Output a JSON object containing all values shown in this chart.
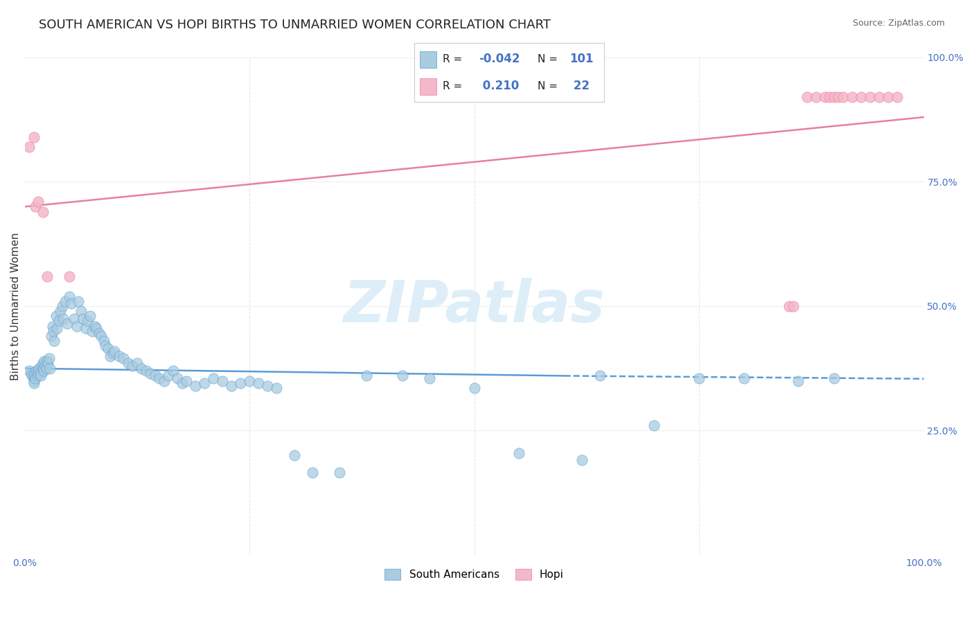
{
  "title": "SOUTH AMERICAN VS HOPI BIRTHS TO UNMARRIED WOMEN CORRELATION CHART",
  "source_text": "Source: ZipAtlas.com",
  "ylabel": "Births to Unmarried Women",
  "xlim": [
    0,
    1
  ],
  "ylim": [
    0,
    1
  ],
  "yticks_right": [
    0.25,
    0.5,
    0.75,
    1.0
  ],
  "ytick_right_labels": [
    "25.0%",
    "50.0%",
    "75.0%",
    "100.0%"
  ],
  "color_blue": "#a8cce0",
  "color_blue_line": "#5b9bd5",
  "color_pink": "#f4b8c8",
  "color_pink_line": "#e87fa0",
  "color_blue_text": "#4472c4",
  "watermark": "ZIPatlas",
  "watermark_color": "#ddeef8",
  "blue_scatter_x": [
    0.005,
    0.007,
    0.008,
    0.01,
    0.01,
    0.01,
    0.01,
    0.011,
    0.012,
    0.013,
    0.014,
    0.015,
    0.015,
    0.016,
    0.017,
    0.018,
    0.019,
    0.02,
    0.02,
    0.021,
    0.022,
    0.023,
    0.024,
    0.025,
    0.026,
    0.027,
    0.028,
    0.03,
    0.031,
    0.032,
    0.033,
    0.035,
    0.036,
    0.038,
    0.04,
    0.042,
    0.043,
    0.045,
    0.047,
    0.05,
    0.052,
    0.055,
    0.058,
    0.06,
    0.063,
    0.065,
    0.068,
    0.07,
    0.073,
    0.075,
    0.078,
    0.08,
    0.083,
    0.085,
    0.088,
    0.09,
    0.093,
    0.095,
    0.098,
    0.1,
    0.105,
    0.11,
    0.115,
    0.12,
    0.125,
    0.13,
    0.135,
    0.14,
    0.145,
    0.15,
    0.155,
    0.16,
    0.165,
    0.17,
    0.175,
    0.18,
    0.19,
    0.2,
    0.21,
    0.22,
    0.23,
    0.24,
    0.25,
    0.26,
    0.27,
    0.28,
    0.3,
    0.32,
    0.35,
    0.38,
    0.42,
    0.45,
    0.5,
    0.55,
    0.62,
    0.64,
    0.7,
    0.75,
    0.8,
    0.86,
    0.9
  ],
  "blue_scatter_y": [
    0.37,
    0.365,
    0.36,
    0.355,
    0.36,
    0.35,
    0.345,
    0.365,
    0.355,
    0.37,
    0.36,
    0.37,
    0.365,
    0.375,
    0.365,
    0.36,
    0.38,
    0.375,
    0.385,
    0.37,
    0.39,
    0.38,
    0.375,
    0.39,
    0.385,
    0.395,
    0.375,
    0.44,
    0.46,
    0.45,
    0.43,
    0.48,
    0.455,
    0.47,
    0.49,
    0.5,
    0.475,
    0.51,
    0.465,
    0.52,
    0.505,
    0.475,
    0.46,
    0.51,
    0.49,
    0.475,
    0.455,
    0.47,
    0.48,
    0.45,
    0.46,
    0.455,
    0.445,
    0.44,
    0.43,
    0.42,
    0.415,
    0.4,
    0.405,
    0.41,
    0.4,
    0.395,
    0.385,
    0.38,
    0.385,
    0.375,
    0.37,
    0.365,
    0.36,
    0.355,
    0.35,
    0.36,
    0.37,
    0.355,
    0.345,
    0.35,
    0.34,
    0.345,
    0.355,
    0.35,
    0.34,
    0.345,
    0.35,
    0.345,
    0.34,
    0.335,
    0.2,
    0.165,
    0.165,
    0.36,
    0.36,
    0.355,
    0.335,
    0.205,
    0.19,
    0.36,
    0.26,
    0.355,
    0.355,
    0.35,
    0.355
  ],
  "pink_scatter_x": [
    0.005,
    0.01,
    0.012,
    0.015,
    0.02,
    0.025,
    0.05,
    0.85,
    0.855,
    0.87,
    0.88,
    0.89,
    0.895,
    0.9,
    0.905,
    0.91,
    0.92,
    0.93,
    0.94,
    0.95,
    0.96,
    0.97
  ],
  "pink_scatter_y": [
    0.82,
    0.84,
    0.7,
    0.71,
    0.69,
    0.56,
    0.56,
    0.5,
    0.5,
    0.92,
    0.92,
    0.92,
    0.92,
    0.92,
    0.92,
    0.92,
    0.92,
    0.92,
    0.92,
    0.92,
    0.92,
    0.92
  ],
  "blue_trend_x0": 0.0,
  "blue_trend_x1": 0.6,
  "blue_trend_y0": 0.375,
  "blue_trend_y1": 0.36,
  "blue_trend_dash_x0": 0.6,
  "blue_trend_dash_x1": 1.0,
  "blue_trend_dash_y0": 0.36,
  "blue_trend_dash_y1": 0.354,
  "pink_trend_x0": 0.0,
  "pink_trend_x1": 1.0,
  "pink_trend_y0": 0.7,
  "pink_trend_y1": 0.88,
  "background_color": "#ffffff",
  "grid_color": "#e8e8e8",
  "title_fontsize": 13,
  "axis_label_fontsize": 11,
  "tick_fontsize": 10
}
